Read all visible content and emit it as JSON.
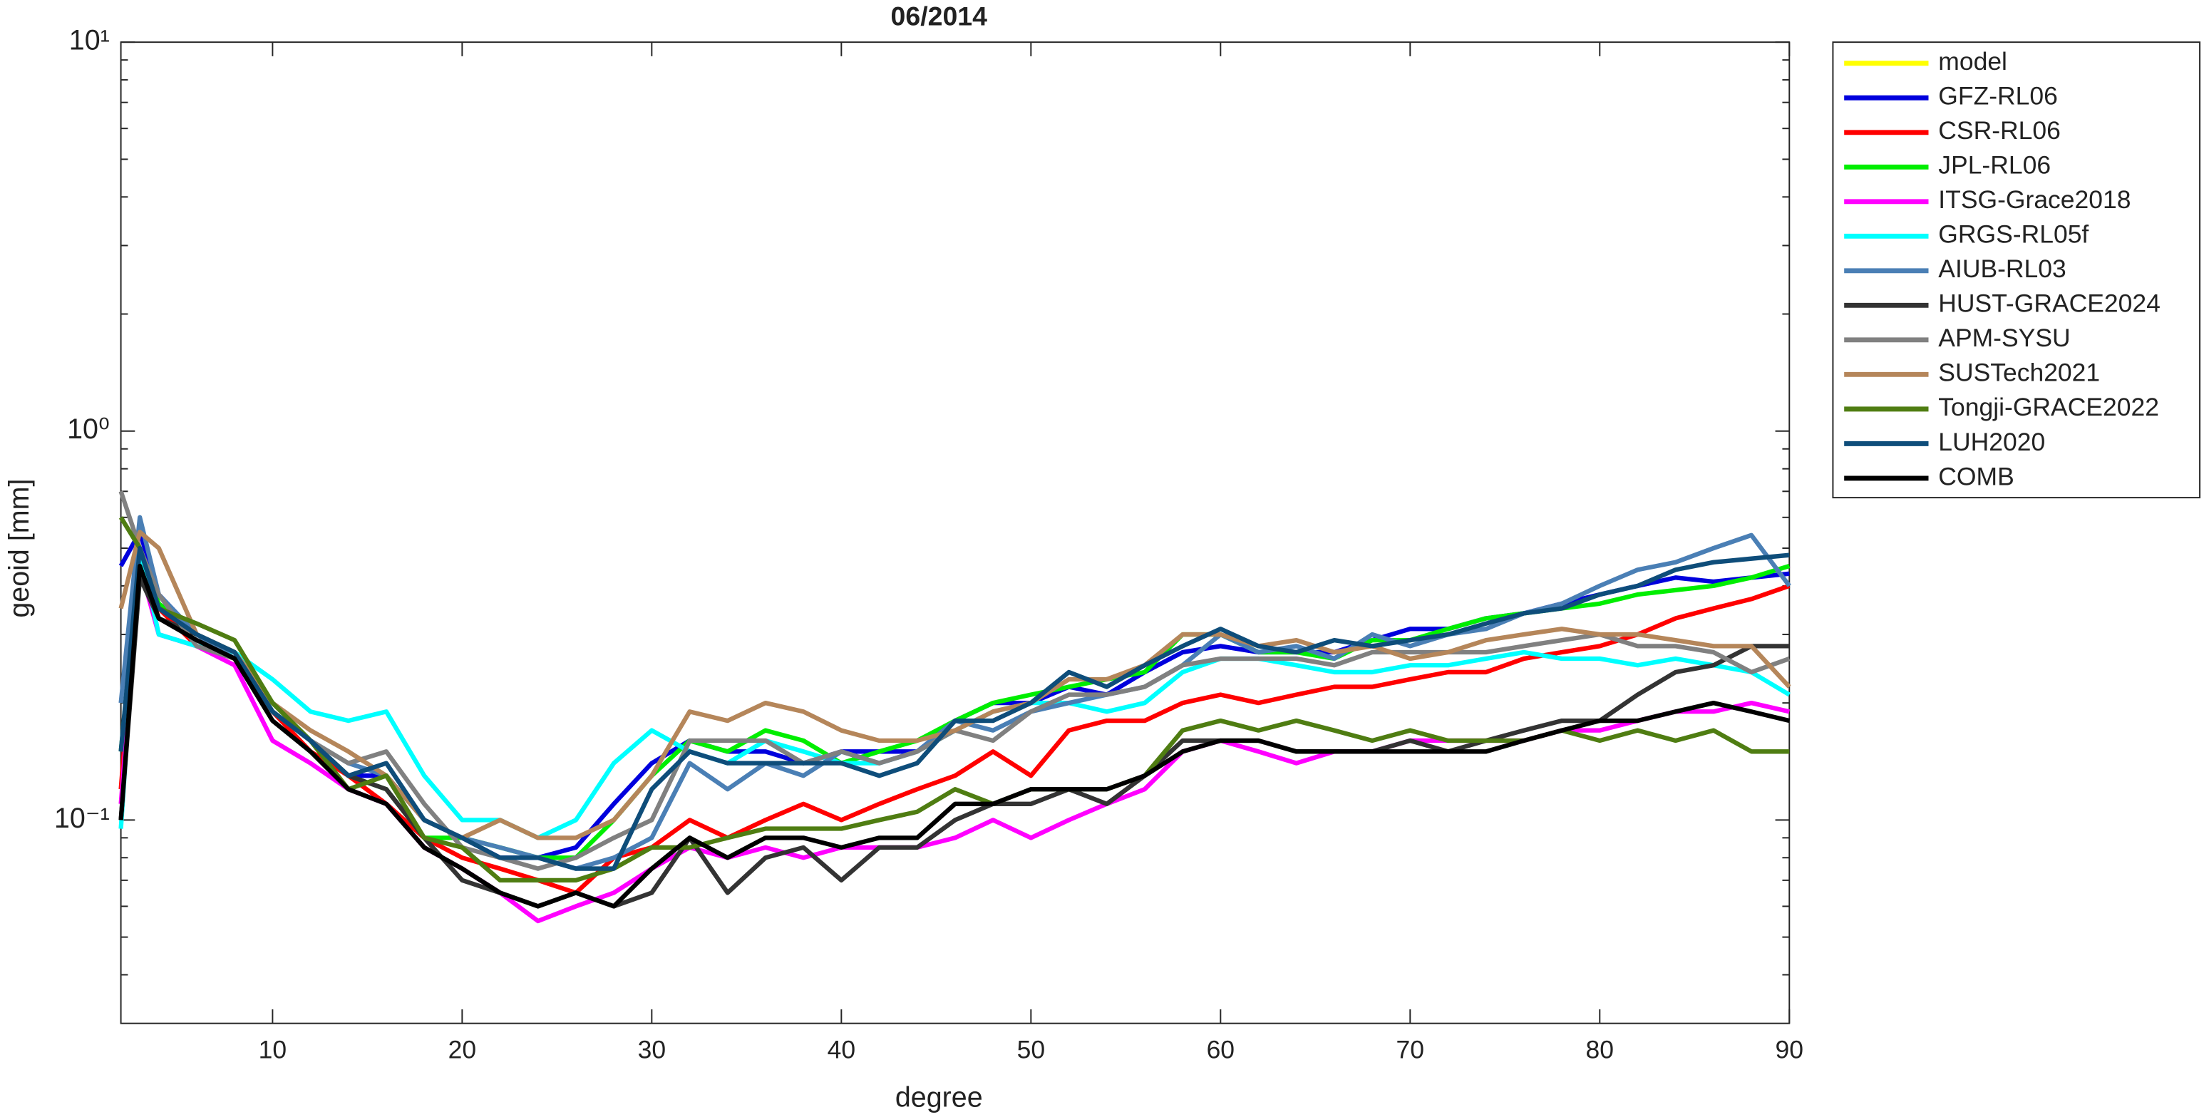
{
  "chart_data": {
    "type": "line",
    "title": "06/2014",
    "x_label": "degree",
    "y_label": "geoid [mm]",
    "log_y": true,
    "legend": "outside-right",
    "xlim": [
      2,
      90
    ],
    "xticks": [
      10,
      20,
      30,
      40,
      50,
      60,
      70,
      80,
      90
    ],
    "ylim": [
      0.03,
      10
    ],
    "yticks": [
      {
        "value": 0.1,
        "label": "10⁻¹"
      },
      {
        "value": 1,
        "label": "10⁰"
      },
      {
        "value": 10,
        "label": "10¹"
      }
    ],
    "yticks_minor": [
      0.04,
      0.05,
      0.06,
      0.07,
      0.08,
      0.09,
      0.2,
      0.3,
      0.4,
      0.5,
      0.6,
      0.7,
      0.8,
      0.9,
      2,
      3,
      4,
      5,
      6,
      7,
      8,
      9
    ],
    "x": [
      2,
      3,
      4,
      6,
      8,
      10,
      12,
      14,
      16,
      18,
      20,
      22,
      24,
      26,
      28,
      30,
      32,
      34,
      36,
      38,
      40,
      42,
      44,
      46,
      48,
      50,
      52,
      54,
      56,
      58,
      60,
      62,
      64,
      66,
      68,
      70,
      72,
      74,
      76,
      78,
      80,
      82,
      84,
      86,
      88,
      90
    ],
    "series": [
      {
        "name": "model",
        "color": "#ffff00",
        "values": [
          null,
          null,
          null,
          null,
          null,
          null,
          null,
          null,
          null,
          null,
          null,
          null,
          null,
          null,
          null,
          null,
          null,
          null,
          null,
          null,
          null,
          null,
          null,
          null,
          null,
          null,
          null,
          null,
          null,
          null,
          null,
          null,
          null,
          null,
          null,
          null,
          null,
          null,
          null,
          null,
          null,
          null,
          null,
          null,
          null,
          null
        ]
      },
      {
        "name": "GFZ-RL06",
        "color": "#0000dd",
        "values": [
          0.45,
          0.55,
          0.38,
          0.3,
          0.27,
          0.2,
          0.16,
          0.13,
          0.13,
          0.1,
          0.09,
          0.08,
          0.08,
          0.085,
          0.11,
          0.14,
          0.16,
          0.15,
          0.15,
          0.14,
          0.15,
          0.15,
          0.15,
          0.18,
          0.2,
          0.2,
          0.22,
          0.21,
          0.24,
          0.27,
          0.28,
          0.27,
          0.27,
          0.27,
          0.29,
          0.31,
          0.31,
          0.33,
          0.34,
          0.36,
          0.38,
          0.4,
          0.42,
          0.41,
          0.42,
          0.43
        ]
      },
      {
        "name": "CSR-RL06",
        "color": "#ff0000",
        "values": [
          0.12,
          0.5,
          0.35,
          0.28,
          0.26,
          0.19,
          0.15,
          0.13,
          0.11,
          0.09,
          0.08,
          0.075,
          0.07,
          0.065,
          0.08,
          0.085,
          0.1,
          0.09,
          0.1,
          0.11,
          0.1,
          0.11,
          0.12,
          0.13,
          0.15,
          0.13,
          0.17,
          0.18,
          0.18,
          0.2,
          0.21,
          0.2,
          0.21,
          0.22,
          0.22,
          0.23,
          0.24,
          0.24,
          0.26,
          0.27,
          0.28,
          0.3,
          0.33,
          0.35,
          0.37,
          0.4
        ]
      },
      {
        "name": "JPL-RL06",
        "color": "#00ee00",
        "values": [
          0.15,
          0.48,
          0.36,
          0.3,
          0.27,
          0.2,
          0.16,
          0.13,
          0.12,
          0.09,
          0.09,
          0.085,
          0.08,
          0.08,
          0.1,
          0.13,
          0.16,
          0.15,
          0.17,
          0.16,
          0.14,
          0.15,
          0.16,
          0.18,
          0.2,
          0.21,
          0.22,
          0.23,
          0.24,
          0.3,
          0.3,
          0.27,
          0.27,
          0.26,
          0.29,
          0.29,
          0.31,
          0.33,
          0.34,
          0.35,
          0.36,
          0.38,
          0.39,
          0.4,
          0.42,
          0.45
        ]
      },
      {
        "name": "ITSG-Grace2018",
        "color": "#ff00ff",
        "values": [
          0.11,
          0.45,
          0.3,
          0.28,
          0.25,
          0.16,
          0.14,
          0.12,
          0.11,
          0.085,
          0.075,
          0.065,
          0.055,
          0.06,
          0.065,
          0.075,
          0.085,
          0.08,
          0.085,
          0.08,
          0.085,
          0.085,
          0.085,
          0.09,
          0.1,
          0.09,
          0.1,
          0.11,
          0.12,
          0.15,
          0.16,
          0.15,
          0.14,
          0.15,
          0.15,
          0.16,
          0.16,
          0.16,
          0.16,
          0.17,
          0.17,
          0.18,
          0.19,
          0.19,
          0.2,
          0.19
        ]
      },
      {
        "name": "GRGS-RL05f",
        "color": "#00ffff",
        "values": [
          0.095,
          0.5,
          0.3,
          0.28,
          0.27,
          0.23,
          0.19,
          0.18,
          0.19,
          0.13,
          0.1,
          0.1,
          0.09,
          0.1,
          0.14,
          0.17,
          0.15,
          0.14,
          0.16,
          0.15,
          0.14,
          0.14,
          0.15,
          0.17,
          0.19,
          0.2,
          0.2,
          0.19,
          0.2,
          0.24,
          0.26,
          0.26,
          0.25,
          0.24,
          0.24,
          0.25,
          0.25,
          0.26,
          0.27,
          0.26,
          0.26,
          0.25,
          0.26,
          0.25,
          0.24,
          0.21
        ]
      },
      {
        "name": "AIUB-RL03",
        "color": "#4a7fb5",
        "values": [
          0.2,
          0.6,
          0.38,
          0.3,
          0.26,
          0.19,
          0.16,
          0.14,
          0.13,
          0.1,
          0.09,
          0.085,
          0.08,
          0.075,
          0.08,
          0.09,
          0.14,
          0.12,
          0.14,
          0.13,
          0.15,
          0.14,
          0.15,
          0.18,
          0.17,
          0.19,
          0.2,
          0.21,
          0.22,
          0.25,
          0.3,
          0.27,
          0.28,
          0.26,
          0.3,
          0.28,
          0.3,
          0.31,
          0.34,
          0.36,
          0.4,
          0.44,
          0.46,
          0.5,
          0.54,
          0.4
        ]
      },
      {
        "name": "HUST-GRACE2024",
        "color": "#333333",
        "values": [
          0.1,
          0.42,
          0.33,
          0.3,
          0.27,
          0.19,
          0.16,
          0.13,
          0.12,
          0.09,
          0.07,
          0.065,
          0.06,
          0.065,
          0.06,
          0.065,
          0.09,
          0.065,
          0.08,
          0.085,
          0.07,
          0.085,
          0.085,
          0.1,
          0.11,
          0.11,
          0.12,
          0.11,
          0.13,
          0.16,
          0.16,
          0.16,
          0.15,
          0.15,
          0.15,
          0.16,
          0.15,
          0.16,
          0.17,
          0.18,
          0.18,
          0.21,
          0.24,
          0.25,
          0.28,
          0.28
        ]
      },
      {
        "name": "APM-SYSU",
        "color": "#808080",
        "values": [
          0.7,
          0.5,
          0.38,
          0.28,
          0.26,
          0.19,
          0.16,
          0.14,
          0.15,
          0.11,
          0.085,
          0.08,
          0.075,
          0.08,
          0.09,
          0.1,
          0.16,
          0.16,
          0.16,
          0.14,
          0.15,
          0.14,
          0.15,
          0.17,
          0.16,
          0.19,
          0.21,
          0.21,
          0.22,
          0.25,
          0.26,
          0.26,
          0.26,
          0.25,
          0.27,
          0.27,
          0.27,
          0.27,
          0.28,
          0.29,
          0.3,
          0.28,
          0.28,
          0.27,
          0.24,
          0.26
        ]
      },
      {
        "name": "SUSTech2021",
        "color": "#b5865a",
        "values": [
          0.35,
          0.55,
          0.5,
          0.3,
          0.27,
          0.2,
          0.17,
          0.15,
          0.13,
          0.1,
          0.09,
          0.1,
          0.09,
          0.09,
          0.1,
          0.13,
          0.19,
          0.18,
          0.2,
          0.19,
          0.17,
          0.16,
          0.16,
          0.17,
          0.19,
          0.2,
          0.23,
          0.23,
          0.25,
          0.3,
          0.3,
          0.28,
          0.29,
          0.27,
          0.28,
          0.26,
          0.27,
          0.29,
          0.3,
          0.31,
          0.3,
          0.3,
          0.29,
          0.28,
          0.28,
          0.22
        ]
      },
      {
        "name": "Tongji-GRACE2022",
        "color": "#4f7d12",
        "values": [
          0.6,
          0.5,
          0.35,
          0.32,
          0.29,
          0.2,
          0.16,
          0.12,
          0.13,
          0.09,
          0.085,
          0.07,
          0.07,
          0.07,
          0.075,
          0.085,
          0.085,
          0.09,
          0.095,
          0.095,
          0.095,
          0.1,
          0.105,
          0.12,
          0.11,
          0.12,
          0.12,
          0.12,
          0.13,
          0.17,
          0.18,
          0.17,
          0.18,
          0.17,
          0.16,
          0.17,
          0.16,
          0.16,
          0.16,
          0.17,
          0.16,
          0.17,
          0.16,
          0.17,
          0.15,
          0.15
        ]
      },
      {
        "name": "LUH2020",
        "color": "#0e4d7a",
        "values": [
          0.15,
          0.5,
          0.35,
          0.3,
          0.27,
          0.19,
          0.16,
          0.13,
          0.14,
          0.1,
          0.09,
          0.08,
          0.08,
          0.075,
          0.075,
          0.12,
          0.15,
          0.14,
          0.14,
          0.14,
          0.14,
          0.13,
          0.14,
          0.18,
          0.18,
          0.2,
          0.24,
          0.22,
          0.25,
          0.28,
          0.31,
          0.28,
          0.27,
          0.29,
          0.28,
          0.29,
          0.3,
          0.32,
          0.34,
          0.35,
          0.38,
          0.4,
          0.44,
          0.46,
          0.47,
          0.48
        ]
      },
      {
        "name": "COMB",
        "color": "#000000",
        "values": [
          0.1,
          0.45,
          0.33,
          0.29,
          0.26,
          0.18,
          0.15,
          0.12,
          0.11,
          0.085,
          0.075,
          0.065,
          0.06,
          0.065,
          0.06,
          0.075,
          0.09,
          0.08,
          0.09,
          0.09,
          0.085,
          0.09,
          0.09,
          0.11,
          0.11,
          0.12,
          0.12,
          0.12,
          0.13,
          0.15,
          0.16,
          0.16,
          0.15,
          0.15,
          0.15,
          0.15,
          0.15,
          0.15,
          0.16,
          0.17,
          0.18,
          0.18,
          0.19,
          0.2,
          0.19,
          0.18
        ]
      }
    ]
  }
}
